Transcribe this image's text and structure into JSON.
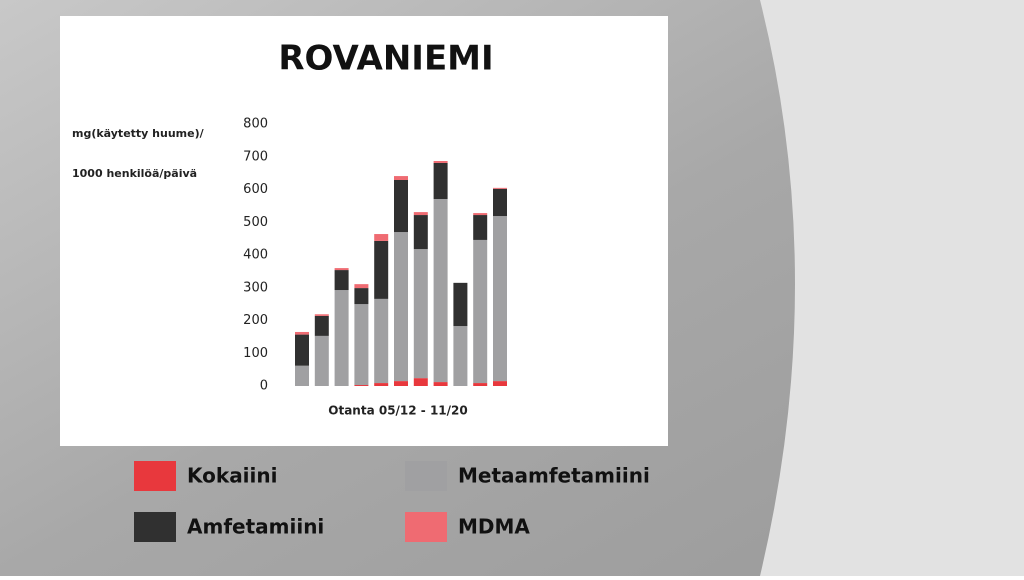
{
  "chart_data": {
    "type": "stacked_bar",
    "title": "ROVANIEMI",
    "ylabel": [
      "mg(käytetty huume)/",
      "1000 henkilöä/päivä"
    ],
    "xlabel": "Otanta 05/12 - 11/20",
    "categories": [
      null,
      null,
      null,
      null,
      null,
      null,
      null,
      null,
      null,
      null,
      null
    ],
    "series": [
      {
        "name": "Kokaiini",
        "color": "#e8383d",
        "values": [
          0,
          0,
          0,
          3,
          9,
          15,
          24,
          12,
          0,
          9,
          15
        ]
      },
      {
        "name": "Metaamfetamiini",
        "color": "#a0a0a2",
        "values": [
          62,
          153,
          293,
          247,
          257,
          455,
          394,
          559,
          183,
          437,
          504
        ]
      },
      {
        "name": "Amfetamiini",
        "color": "#303030",
        "values": [
          95,
          61,
          61,
          49,
          177,
          159,
          104,
          110,
          132,
          76,
          83
        ]
      },
      {
        "name": "MDMA",
        "color": "#ef6b72",
        "values": [
          8,
          5,
          6,
          12,
          21,
          12,
          9,
          6,
          0,
          6,
          3
        ]
      }
    ],
    "ylim": [
      0,
      800
    ],
    "yticks": [
      0,
      100,
      200,
      300,
      400,
      500,
      600,
      700,
      800
    ]
  }
}
